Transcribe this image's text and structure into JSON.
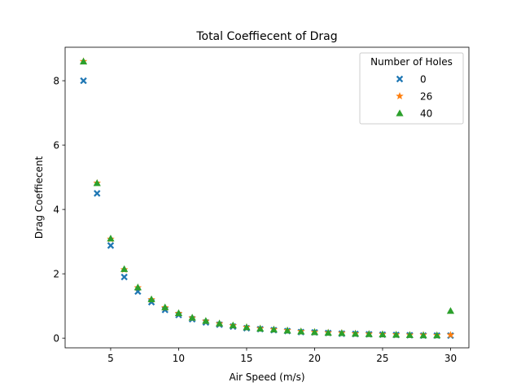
{
  "chart_data": {
    "type": "scatter",
    "title": "Total Coeffiecent of Drag",
    "xlabel": "Air Speed (m/s)",
    "ylabel": "Drag Coeffiecent",
    "xlim": [
      1.65,
      31.35
    ],
    "ylim": [
      -0.3,
      9.04
    ],
    "xticks": [
      5,
      10,
      15,
      20,
      25,
      30
    ],
    "yticks": [
      0,
      2,
      4,
      6,
      8
    ],
    "grid": false,
    "legend": {
      "title": "Number of Holes",
      "placement": "top-right"
    },
    "series": [
      {
        "name": "0",
        "marker": "x-filled",
        "color": "#1f77b4",
        "x": [
          3,
          4,
          5,
          6,
          7,
          8,
          9,
          10,
          11,
          12,
          13,
          14,
          15,
          16,
          17,
          18,
          19,
          20,
          21,
          22,
          23,
          24,
          25,
          26,
          27,
          28,
          29,
          30
        ],
        "y": [
          8.0,
          4.5,
          2.88,
          1.9,
          1.45,
          1.12,
          0.88,
          0.72,
          0.59,
          0.49,
          0.42,
          0.36,
          0.31,
          0.28,
          0.25,
          0.22,
          0.19,
          0.18,
          0.16,
          0.14,
          0.13,
          0.12,
          0.11,
          0.1,
          0.09,
          0.08,
          0.08,
          0.08
        ]
      },
      {
        "name": "26",
        "marker": "star",
        "color": "#ff7f0e",
        "x": [
          3,
          4,
          5,
          6,
          7,
          8,
          9,
          10,
          11,
          12,
          13,
          14,
          15,
          16,
          17,
          18,
          19,
          20,
          21,
          22,
          23,
          24,
          25,
          26,
          27,
          28,
          29,
          30
        ],
        "y": [
          8.6,
          4.82,
          3.08,
          2.13,
          1.57,
          1.2,
          0.95,
          0.77,
          0.63,
          0.53,
          0.45,
          0.39,
          0.34,
          0.3,
          0.27,
          0.24,
          0.21,
          0.19,
          0.17,
          0.16,
          0.14,
          0.13,
          0.12,
          0.11,
          0.1,
          0.1,
          0.09,
          0.1
        ]
      },
      {
        "name": "40",
        "marker": "triangle",
        "color": "#2ca02c",
        "x": [
          3,
          4,
          5,
          6,
          7,
          8,
          9,
          10,
          11,
          12,
          13,
          14,
          15,
          16,
          17,
          18,
          19,
          20,
          21,
          22,
          23,
          24,
          25,
          26,
          27,
          28,
          29,
          30
        ],
        "y": [
          8.6,
          4.82,
          3.1,
          2.15,
          1.58,
          1.21,
          0.96,
          0.78,
          0.64,
          0.54,
          0.46,
          0.4,
          0.34,
          0.3,
          0.27,
          0.24,
          0.21,
          0.19,
          0.17,
          0.16,
          0.14,
          0.13,
          0.12,
          0.11,
          0.1,
          0.09,
          0.09,
          0.85
        ]
      }
    ]
  }
}
